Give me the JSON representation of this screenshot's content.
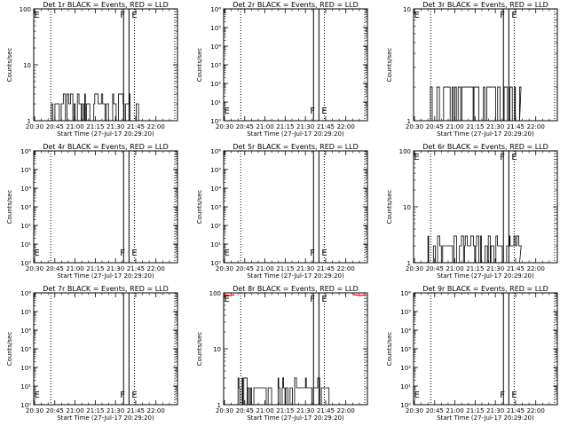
{
  "figure": {
    "start_time_label": "Start Time (27-Jul-17 20:29:20)",
    "ylabel": "Counts/sec",
    "x_ticks": [
      "20:30",
      "20:45",
      "21:00",
      "21:15",
      "21:30",
      "21:45",
      "22:00"
    ],
    "x_range": [
      "20:29:20",
      "22:16:00"
    ],
    "dotted_lines": [
      "20:42",
      "21:44",
      "22:14"
    ],
    "solid_lines": [
      "21:36",
      "21:40"
    ],
    "colors": {
      "events": "#000000",
      "lld": "#ff0000"
    }
  },
  "chart_data": [
    {
      "type": "line",
      "title": "Det 1r BLACK = Events, RED = LLD",
      "yscale": "log",
      "ylim": [
        1,
        100
      ],
      "y_ticks": [
        "1",
        "10",
        "100"
      ],
      "markers": [
        "E",
        "F",
        "E"
      ],
      "series": [
        {
          "name": "Events",
          "values": "bursts of 2 to 3 counts/sec, 20:40 to 21:48"
        }
      ]
    },
    {
      "type": "line",
      "title": "Det 2r BLACK = Events, RED = LLD",
      "yscale": "log",
      "ylim": [
        1,
        1000000
      ],
      "y_ticks": [
        "10⁰",
        "10¹",
        "10²",
        "10³",
        "10⁴",
        "10⁵",
        "10⁶"
      ],
      "markers": [
        "E",
        "F",
        "E"
      ],
      "series": []
    },
    {
      "type": "line",
      "title": "Det 3r BLACK = Events, RED = LLD",
      "yscale": "log",
      "ylim": [
        1,
        10
      ],
      "y_ticks": [
        "1",
        "10"
      ],
      "markers": [
        "E",
        "F",
        "E"
      ],
      "series": [
        {
          "name": "Events",
          "values": "bursts of 1 to 2 counts/sec, 20:43 to 21:49"
        }
      ]
    },
    {
      "type": "line",
      "title": "Det 4r BLACK = Events, RED = LLD",
      "yscale": "log",
      "ylim": [
        1,
        1000000
      ],
      "y_ticks": [
        "10⁰",
        "10¹",
        "10²",
        "10³",
        "10⁴",
        "10⁵",
        "10⁶"
      ],
      "markers": [
        "E",
        "F",
        "E"
      ],
      "series": []
    },
    {
      "type": "line",
      "title": "Det 5r BLACK = Events, RED = LLD",
      "yscale": "log",
      "ylim": [
        1,
        1000000
      ],
      "y_ticks": [
        "10⁰",
        "10¹",
        "10²",
        "10³",
        "10⁴",
        "10⁵",
        "10⁶"
      ],
      "markers": [
        "E",
        "F",
        "E"
      ],
      "series": []
    },
    {
      "type": "line",
      "title": "Det 6r BLACK = Events, RED = LLD",
      "yscale": "log",
      "ylim": [
        1,
        100
      ],
      "y_ticks": [
        "1",
        "10",
        "100"
      ],
      "markers": [
        "E",
        "F",
        "E"
      ],
      "series": [
        {
          "name": "Events",
          "values": "bursts of 2 to 3 counts/sec, 20:39 to 21:49"
        }
      ]
    },
    {
      "type": "line",
      "title": "Det 7r BLACK = Events, RED = LLD",
      "yscale": "log",
      "ylim": [
        1,
        1000000
      ],
      "y_ticks": [
        "10⁰",
        "10¹",
        "10²",
        "10³",
        "10⁴",
        "10⁵",
        "10⁶"
      ],
      "markers": [
        "E",
        "F",
        "E"
      ],
      "series": []
    },
    {
      "type": "line",
      "title": "Det 8r BLACK = Events, RED = LLD",
      "yscale": "log",
      "ylim": [
        1,
        100
      ],
      "y_ticks": [
        "1",
        "10",
        "100"
      ],
      "markers": [
        "E",
        "F",
        "E"
      ],
      "series": [
        {
          "name": "Events",
          "values": "bursts of 2 to 3 counts/sec, 20:40 to 21:48"
        },
        {
          "name": "LLD",
          "values": "near 100 counts/sec at the start and end of the window"
        }
      ]
    },
    {
      "type": "line",
      "title": "Det 9r BLACK = Events, RED = LLD",
      "yscale": "log",
      "ylim": [
        1,
        1000000
      ],
      "y_ticks": [
        "10⁰",
        "10¹",
        "10²",
        "10³",
        "10⁴",
        "10⁵",
        "10⁶"
      ],
      "markers": [
        "E",
        "F",
        "E"
      ],
      "series": []
    }
  ]
}
